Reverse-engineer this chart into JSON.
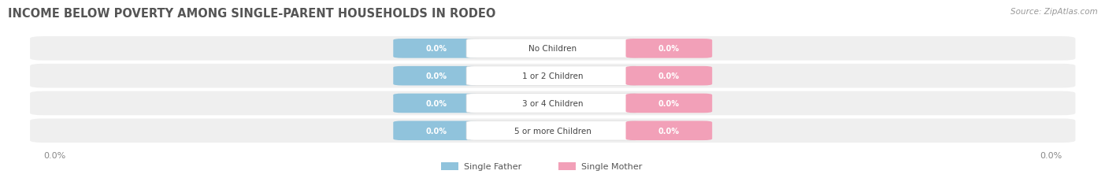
{
  "title": "INCOME BELOW POVERTY AMONG SINGLE-PARENT HOUSEHOLDS IN RODEO",
  "source": "Source: ZipAtlas.com",
  "categories": [
    "No Children",
    "1 or 2 Children",
    "3 or 4 Children",
    "5 or more Children"
  ],
  "single_father_values": [
    0.0,
    0.0,
    0.0,
    0.0
  ],
  "single_mother_values": [
    0.0,
    0.0,
    0.0,
    0.0
  ],
  "father_color": "#90C3DC",
  "mother_color": "#F2A0B8",
  "row_bg_color": "#EFEFEF",
  "title_fontsize": 10.5,
  "source_fontsize": 7.5,
  "value_fontsize": 7,
  "cat_fontsize": 7.5,
  "axis_value_left": "0.0%",
  "axis_value_right": "0.0%",
  "legend_father": "Single Father",
  "legend_mother": "Single Mother",
  "background_color": "#FFFFFF"
}
